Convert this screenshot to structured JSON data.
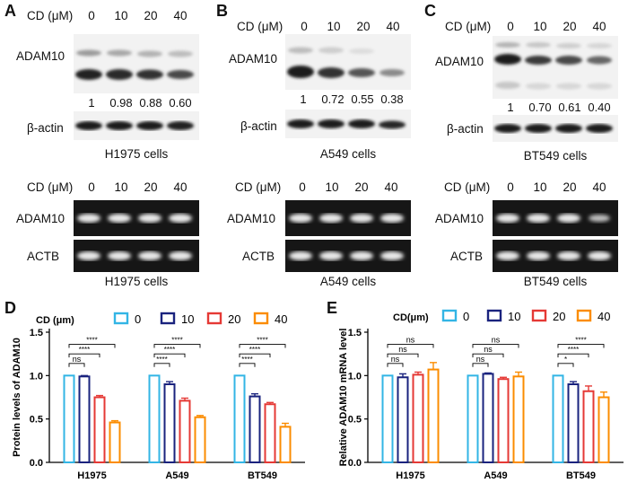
{
  "panels": {
    "A": {
      "letter": "A",
      "cd_label": "CD (μM)",
      "lanes": [
        "0",
        "10",
        "20",
        "40"
      ],
      "protein": "ADAM10",
      "ratios": [
        "1",
        "0.98",
        "0.88",
        "0.60"
      ],
      "loading": "β-actin",
      "cells": "H1975 cells",
      "gel_cd_label": "CD (μM)",
      "gel_lanes": [
        "0",
        "10",
        "20",
        "40"
      ],
      "gel_gene": "ADAM10",
      "gel_ctrl": "ACTB",
      "gel_cells": "H1975 cells"
    },
    "B": {
      "letter": "B",
      "cd_label": "CD (μM)",
      "lanes": [
        "0",
        "10",
        "20",
        "40"
      ],
      "protein": "ADAM10",
      "ratios": [
        "1",
        "0.72",
        "0.55",
        "0.38"
      ],
      "loading": "β-actin",
      "cells": "A549 cells",
      "gel_cd_label": "CD (μM)",
      "gel_lanes": [
        "0",
        "10",
        "20",
        "40"
      ],
      "gel_gene": "ADAM10",
      "gel_ctrl": "ACTB",
      "gel_cells": "A549 cells"
    },
    "C": {
      "letter": "C",
      "cd_label": "CD (μM)",
      "lanes": [
        "0",
        "10",
        "20",
        "40"
      ],
      "protein": "ADAM10",
      "ratios": [
        "1",
        "0.70",
        "0.61",
        "0.40"
      ],
      "loading": "β-actin",
      "cells": "BT549 cells",
      "gel_cd_label": "CD (μM)",
      "gel_lanes": [
        "0",
        "10",
        "20",
        "40"
      ],
      "gel_gene": "ADAM10",
      "gel_ctrl": "ACTB",
      "gel_cells": "BT549 cells"
    }
  },
  "colors": [
    "#33b5e5",
    "#1a237e",
    "#e53935",
    "#fb8c00"
  ],
  "chart_data": [
    {
      "panel": "D",
      "type": "bar",
      "legend_title": "CD (μm)",
      "series_names": [
        "0",
        "10",
        "20",
        "40"
      ],
      "categories": [
        "H1975",
        "A549",
        "BT549"
      ],
      "ylabel": "Protein levels of ADAM10",
      "ylim": [
        0,
        1.5
      ],
      "yticks": [
        "0.0",
        "0.5",
        "1.0",
        "1.5"
      ],
      "series": [
        {
          "name": "0",
          "values": [
            1.0,
            1.0,
            1.0
          ],
          "errors": [
            0,
            0,
            0
          ]
        },
        {
          "name": "10",
          "values": [
            0.99,
            0.9,
            0.76
          ],
          "errors": [
            0.01,
            0.03,
            0.03
          ]
        },
        {
          "name": "20",
          "values": [
            0.75,
            0.71,
            0.67
          ],
          "errors": [
            0.02,
            0.03,
            0.02
          ]
        },
        {
          "name": "40",
          "values": [
            0.46,
            0.52,
            0.41
          ],
          "errors": [
            0.02,
            0.02,
            0.04
          ]
        }
      ],
      "sig": [
        {
          "cat": 0,
          "from": 0,
          "to": 1,
          "label": "ns",
          "y": 1.14
        },
        {
          "cat": 0,
          "from": 0,
          "to": 2,
          "label": "****",
          "y": 1.25
        },
        {
          "cat": 0,
          "from": 0,
          "to": 3,
          "label": "****",
          "y": 1.36
        },
        {
          "cat": 1,
          "from": 0,
          "to": 1,
          "label": "****",
          "y": 1.14
        },
        {
          "cat": 1,
          "from": 0,
          "to": 2,
          "label": "****",
          "y": 1.25
        },
        {
          "cat": 1,
          "from": 0,
          "to": 3,
          "label": "****",
          "y": 1.36
        },
        {
          "cat": 2,
          "from": 0,
          "to": 1,
          "label": "****",
          "y": 1.14
        },
        {
          "cat": 2,
          "from": 0,
          "to": 2,
          "label": "****",
          "y": 1.25
        },
        {
          "cat": 2,
          "from": 0,
          "to": 3,
          "label": "****",
          "y": 1.36
        }
      ]
    },
    {
      "panel": "E",
      "type": "bar",
      "legend_title": "CD(μm)",
      "series_names": [
        "0",
        "10",
        "20",
        "40"
      ],
      "categories": [
        "H1975",
        "A549",
        "BT549"
      ],
      "ylabel": "Relative ADAM10 mRNA level",
      "ylim": [
        0,
        1.5
      ],
      "yticks": [
        "0.0",
        "0.5",
        "1.0",
        "1.5"
      ],
      "series": [
        {
          "name": "0",
          "values": [
            1.0,
            1.0,
            1.0
          ],
          "errors": [
            0,
            0,
            0
          ]
        },
        {
          "name": "10",
          "values": [
            0.98,
            1.02,
            0.9
          ],
          "errors": [
            0.04,
            0.01,
            0.03
          ]
        },
        {
          "name": "20",
          "values": [
            1.01,
            0.96,
            0.82
          ],
          "errors": [
            0.03,
            0.02,
            0.06
          ]
        },
        {
          "name": "40",
          "values": [
            1.07,
            0.99,
            0.75
          ],
          "errors": [
            0.08,
            0.05,
            0.06
          ]
        }
      ],
      "sig": [
        {
          "cat": 0,
          "from": 0,
          "to": 1,
          "label": "ns",
          "y": 1.14
        },
        {
          "cat": 0,
          "from": 0,
          "to": 2,
          "label": "ns",
          "y": 1.25
        },
        {
          "cat": 0,
          "from": 0,
          "to": 3,
          "label": "ns",
          "y": 1.36
        },
        {
          "cat": 1,
          "from": 0,
          "to": 1,
          "label": "ns",
          "y": 1.14
        },
        {
          "cat": 1,
          "from": 0,
          "to": 2,
          "label": "ns",
          "y": 1.25
        },
        {
          "cat": 1,
          "from": 0,
          "to": 3,
          "label": "ns",
          "y": 1.36
        },
        {
          "cat": 2,
          "from": 0,
          "to": 1,
          "label": "*",
          "y": 1.14
        },
        {
          "cat": 2,
          "from": 0,
          "to": 2,
          "label": "****",
          "y": 1.25
        },
        {
          "cat": 2,
          "from": 0,
          "to": 3,
          "label": "****",
          "y": 1.36
        }
      ]
    }
  ],
  "chart_labels": {
    "D": "D",
    "E": "E"
  }
}
